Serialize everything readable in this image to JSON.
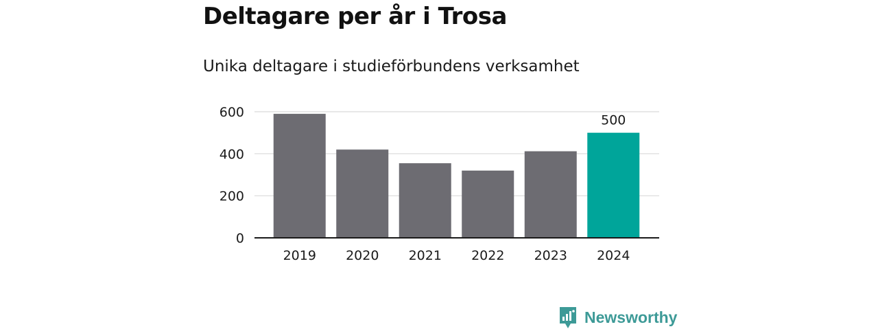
{
  "header": {
    "title": "Deltagare per år i Trosa",
    "subtitle": "Unika deltagare i studieförbundens verksamhet"
  },
  "brand": {
    "name": "Newsworthy",
    "icon": "newsworthy-logo-icon",
    "color": "#3d9a97"
  },
  "colors": {
    "bar": "#6d6c72",
    "highlight": "#00a59a",
    "grid": "#d9d9d9",
    "axis": "#1a1a1a",
    "text": "#1a1a1a"
  },
  "chart_data": {
    "type": "bar",
    "title": "Deltagare per år i Trosa",
    "subtitle": "Unika deltagare i studieförbundens verksamhet",
    "xlabel": "",
    "ylabel": "",
    "categories": [
      "2019",
      "2020",
      "2021",
      "2022",
      "2023",
      "2024"
    ],
    "values": [
      590,
      420,
      355,
      320,
      412,
      500
    ],
    "highlight_index": 5,
    "data_labels": [
      "",
      "",
      "",
      "",
      "",
      "500"
    ],
    "ylim": [
      0,
      600
    ],
    "yticks": [
      0,
      200,
      400,
      600
    ],
    "grid": true,
    "legend": "none"
  }
}
